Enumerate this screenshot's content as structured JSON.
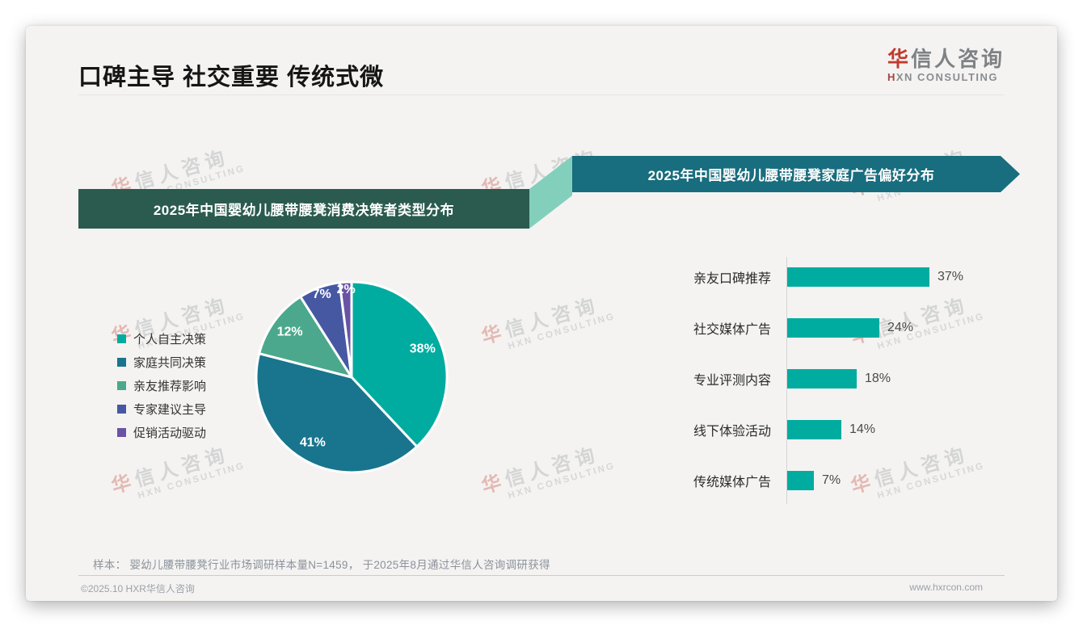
{
  "page": {
    "title": "口碑主导 社交重要 传统式微",
    "footnote": "样本： 婴幼儿腰带腰凳行业市场调研样本量N=1459， 于2025年8月通过华信人咨询调研获得",
    "footer_left": "©2025.10 HXR华信人咨询",
    "footer_right": "www.hxrcon.com"
  },
  "brand": {
    "logo_zh_accent": "华",
    "logo_zh_rest": "信人咨询",
    "logo_en_accent": "H",
    "logo_en_rest": "XN CONSULTING",
    "watermark_zh_accent": "华",
    "watermark_zh_rest": "信人咨询",
    "watermark_en": "HXN CONSULTING",
    "accent_red": "#c23b2e",
    "teal": "#00aca0"
  },
  "chart_data": [
    {
      "type": "pie",
      "title": "2025年中国婴幼儿腰带腰凳消费决策者类型分布",
      "labels": [
        "个人自主决策",
        "家庭共同决策",
        "亲友推荐影响",
        "专家建议主导",
        "促销活动驱动"
      ],
      "values": [
        38,
        41,
        12,
        7,
        2
      ],
      "colors": [
        "#00aca0",
        "#18758d",
        "#4ba88c",
        "#4758a3",
        "#6a53a5"
      ],
      "unit": "%",
      "legend_position": "left",
      "start_angle_deg": 0,
      "direction": "clockwise",
      "banner_color": "#2b5b4f"
    },
    {
      "type": "bar",
      "orientation": "horizontal",
      "title": "2025年中国婴幼儿腰带腰凳家庭广告偏好分布",
      "categories": [
        "亲友口碑推荐",
        "社交媒体广告",
        "专业评测内容",
        "线下体验活动",
        "传统媒体广告"
      ],
      "values": [
        37,
        24,
        18,
        14,
        7
      ],
      "unit": "%",
      "bar_color": "#00aca0",
      "axis_color": "#d5d5d5",
      "xlim": [
        0,
        40
      ],
      "banner_color": "#186d7e"
    }
  ]
}
